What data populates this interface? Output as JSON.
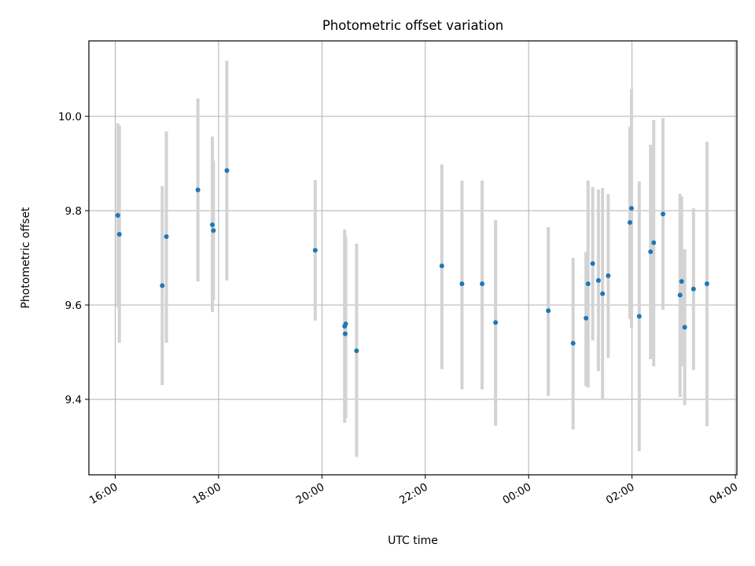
{
  "chart_data": {
    "type": "scatter",
    "title": "Photometric offset variation",
    "xlabel": "UTC time",
    "ylabel": "Photometric offset",
    "x_unit": "hours (UTC, continuing past midnight)",
    "xlim": [
      15.49,
      28.03
    ],
    "ylim": [
      9.24,
      10.16
    ],
    "x_ticks": [
      {
        "value": 16,
        "label": "16:00"
      },
      {
        "value": 18,
        "label": "18:00"
      },
      {
        "value": 20,
        "label": "20:00"
      },
      {
        "value": 22,
        "label": "22:00"
      },
      {
        "value": 24,
        "label": "00:00"
      },
      {
        "value": 26,
        "label": "02:00"
      },
      {
        "value": 28,
        "label": "04:00"
      }
    ],
    "y_ticks": [
      {
        "value": 9.4,
        "label": "9.4"
      },
      {
        "value": 9.6,
        "label": "9.6"
      },
      {
        "value": 9.8,
        "label": "9.8"
      },
      {
        "value": 10.0,
        "label": "10.0"
      }
    ],
    "grid": true,
    "colors": {
      "point": "#1f77b4",
      "errorbar": "#d3d3d3",
      "grid": "#b0b0b0"
    },
    "points": [
      {
        "x": 16.05,
        "y": 9.79,
        "lo": 9.595,
        "hi": 9.985
      },
      {
        "x": 16.08,
        "y": 9.75,
        "lo": 9.52,
        "hi": 9.98
      },
      {
        "x": 16.91,
        "y": 9.641,
        "lo": 9.43,
        "hi": 9.852
      },
      {
        "x": 16.99,
        "y": 9.745,
        "lo": 9.52,
        "hi": 9.968
      },
      {
        "x": 17.6,
        "y": 9.844,
        "lo": 9.65,
        "hi": 10.038
      },
      {
        "x": 17.88,
        "y": 9.77,
        "lo": 9.585,
        "hi": 9.957
      },
      {
        "x": 17.9,
        "y": 9.758,
        "lo": 9.61,
        "hi": 9.906
      },
      {
        "x": 18.16,
        "y": 9.885,
        "lo": 9.652,
        "hi": 10.118
      },
      {
        "x": 19.87,
        "y": 9.716,
        "lo": 9.567,
        "hi": 9.865
      },
      {
        "x": 20.44,
        "y": 9.555,
        "lo": 9.35,
        "hi": 9.76
      },
      {
        "x": 20.46,
        "y": 9.56,
        "lo": 9.36,
        "hi": 9.745
      },
      {
        "x": 20.45,
        "y": 9.539,
        "lo": 9.36,
        "hi": 9.745
      },
      {
        "x": 20.67,
        "y": 9.503,
        "lo": 9.278,
        "hi": 9.73
      },
      {
        "x": 22.32,
        "y": 9.683,
        "lo": 9.464,
        "hi": 9.898
      },
      {
        "x": 22.71,
        "y": 9.645,
        "lo": 9.421,
        "hi": 9.864
      },
      {
        "x": 23.1,
        "y": 9.645,
        "lo": 9.421,
        "hi": 9.864
      },
      {
        "x": 23.36,
        "y": 9.563,
        "lo": 9.344,
        "hi": 9.78
      },
      {
        "x": 24.38,
        "y": 9.588,
        "lo": 9.407,
        "hi": 9.765
      },
      {
        "x": 24.86,
        "y": 9.519,
        "lo": 9.336,
        "hi": 9.7
      },
      {
        "x": 25.11,
        "y": 9.572,
        "lo": 9.428,
        "hi": 9.713
      },
      {
        "x": 25.15,
        "y": 9.645,
        "lo": 9.425,
        "hi": 9.864
      },
      {
        "x": 25.24,
        "y": 9.688,
        "lo": 9.525,
        "hi": 9.85
      },
      {
        "x": 25.35,
        "y": 9.652,
        "lo": 9.46,
        "hi": 9.845
      },
      {
        "x": 25.43,
        "y": 9.624,
        "lo": 9.4,
        "hi": 9.848
      },
      {
        "x": 25.54,
        "y": 9.662,
        "lo": 9.488,
        "hi": 9.835
      },
      {
        "x": 25.96,
        "y": 9.775,
        "lo": 9.57,
        "hi": 9.978
      },
      {
        "x": 25.99,
        "y": 9.805,
        "lo": 9.552,
        "hi": 10.058
      },
      {
        "x": 26.14,
        "y": 9.576,
        "lo": 9.29,
        "hi": 9.862
      },
      {
        "x": 26.36,
        "y": 9.713,
        "lo": 9.485,
        "hi": 9.94
      },
      {
        "x": 26.42,
        "y": 9.732,
        "lo": 9.47,
        "hi": 9.992
      },
      {
        "x": 26.6,
        "y": 9.793,
        "lo": 9.59,
        "hi": 9.996
      },
      {
        "x": 26.93,
        "y": 9.621,
        "lo": 9.405,
        "hi": 9.836
      },
      {
        "x": 26.96,
        "y": 9.65,
        "lo": 9.47,
        "hi": 9.83
      },
      {
        "x": 27.02,
        "y": 9.553,
        "lo": 9.388,
        "hi": 9.718
      },
      {
        "x": 27.19,
        "y": 9.634,
        "lo": 9.462,
        "hi": 9.805
      },
      {
        "x": 27.45,
        "y": 9.645,
        "lo": 9.343,
        "hi": 9.946
      }
    ]
  }
}
